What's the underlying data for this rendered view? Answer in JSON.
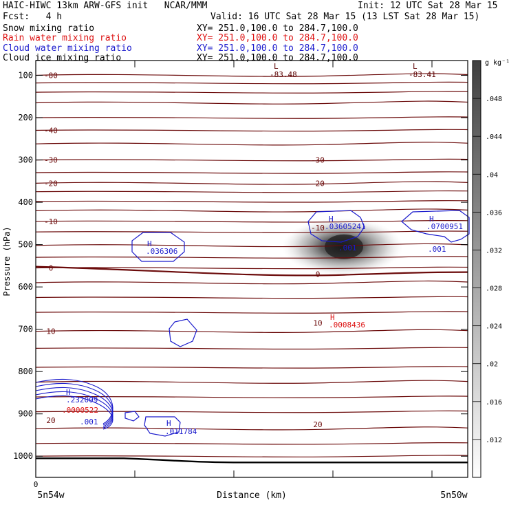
{
  "header": {
    "line1_left": "HAIC-HIWC 13km ARW-GFS init   NCAR/MMM",
    "line1_right": "Init: 12 UTC Sat 28 Mar 15",
    "fcst": "Fcst:   4 h",
    "valid": "Valid: 16 UTC Sat 28 Mar 15 (13 LST Sat 28 Mar 15)",
    "fields": [
      {
        "label": "Snow mixing ratio",
        "xy": "XY= 251.0,100.0 to 284.7,100.0",
        "color": "#000000"
      },
      {
        "label": "Rain water mixing ratio",
        "xy": "XY= 251.0,100.0 to 284.7,100.0",
        "color": "#dd1111"
      },
      {
        "label": "Cloud water mixing ratio",
        "xy": "XY= 251.0,100.0 to 284.7,100.0",
        "color": "#1a1acc"
      },
      {
        "label": "Cloud ice mixing ratio",
        "xy": "XY= 251.0,100.0 to 284.7,100.0",
        "color": "#000000"
      }
    ]
  },
  "chart_data": {
    "type": "cross-section",
    "xlabel": "Distance (km)",
    "ylabel": "Pressure (hPa)",
    "ylim": [
      1050,
      65
    ],
    "y_ticks": [
      100,
      200,
      300,
      400,
      500,
      600,
      700,
      800,
      900,
      1000
    ],
    "x_tick_label": "0",
    "x_left_label": "5n54w",
    "x_right_label": "5n50w",
    "colorbar": {
      "unit": "g kg⁻¹",
      "levels": [
        ".012",
        ".016",
        ".02",
        ".024",
        ".028",
        ".032",
        ".036",
        ".04",
        ".044",
        ".048"
      ]
    },
    "temperature_labels": [
      {
        "text": "-80",
        "p": 100,
        "pos": "left"
      },
      {
        "text": "-40",
        "p": 230,
        "pos": "left"
      },
      {
        "text": "-30",
        "p": 300,
        "pos": "left"
      },
      {
        "text": "-30",
        "p": 300,
        "pos": "mid"
      },
      {
        "text": "-20",
        "p": 355,
        "pos": "left"
      },
      {
        "text": "-20",
        "p": 355,
        "pos": "mid"
      },
      {
        "text": "-10",
        "p": 445,
        "pos": "left"
      },
      {
        "text": "-10",
        "p": 460,
        "pos": "mid"
      },
      {
        "text": "0",
        "p": 555,
        "pos": "left"
      },
      {
        "text": "0",
        "p": 570,
        "pos": "mid"
      },
      {
        "text": "10",
        "p": 705,
        "pos": "left"
      },
      {
        "text": "10",
        "p": 685,
        "pos": "mid"
      },
      {
        "text": "20",
        "p": 915,
        "pos": "left"
      },
      {
        "text": "20",
        "p": 925,
        "pos": "mid"
      }
    ],
    "extrema_labels": [
      {
        "text": "L",
        "color": "#5a0000"
      },
      {
        "text": "-83.48",
        "color": "#5a0000"
      },
      {
        "text": "L",
        "color": "#5a0000"
      },
      {
        "text": "-83.41",
        "color": "#5a0000"
      },
      {
        "text": "H",
        "color": "#1a1acc"
      },
      {
        "text": ".036306",
        "color": "#1a1acc"
      },
      {
        "text": "H",
        "color": "#1a1acc"
      },
      {
        "text": ".03605241",
        "color": "#1a1acc"
      },
      {
        "text": ".001",
        "color": "#1a1acc"
      },
      {
        "text": "H",
        "color": "#1a1acc"
      },
      {
        "text": ".0700951",
        "color": "#1a1acc"
      },
      {
        "text": ".001",
        "color": "#1a1acc"
      },
      {
        "text": "H",
        "color": "#dd1111"
      },
      {
        "text": ".0008436",
        "color": "#dd1111"
      },
      {
        "text": "H",
        "color": "#1a1acc"
      },
      {
        "text": ".232009",
        "color": "#1a1acc"
      },
      {
        "text": ".0000522",
        "color": "#dd1111"
      },
      {
        "text": ".001",
        "color": "#1a1acc"
      },
      {
        "text": "H",
        "color": "#1a1acc"
      },
      {
        "text": ".011784",
        "color": "#1a1acc"
      }
    ],
    "ice_max_value": 0.048,
    "ice_max_p": 505,
    "colors": {
      "temperature": "#6b0a0a",
      "cloud_water": "#1a1acc",
      "rain": "#dd1111",
      "freezing_level": "#6b0a0a",
      "terrain": "#000000"
    }
  }
}
